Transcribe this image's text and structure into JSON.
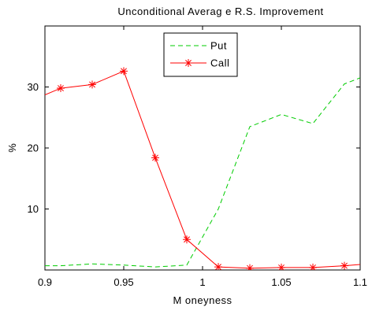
{
  "chart_data": {
    "type": "line",
    "title": "Unconditional Averag e R.S. Improvement",
    "xlabel": "M oneyness",
    "ylabel": "%",
    "xlim": [
      0.9,
      1.1
    ],
    "ylim": [
      0,
      40
    ],
    "xticks": [
      0.9,
      0.95,
      1,
      1.05,
      1.1
    ],
    "xtick_labels": [
      "0.9",
      "0.95",
      "1",
      "1.05",
      "1.1"
    ],
    "yticks": [
      10,
      20,
      30
    ],
    "ytick_labels": [
      "10",
      "20",
      "30"
    ],
    "grid": false,
    "legend_position": "top-center",
    "series": [
      {
        "name": "Put",
        "style": "dashed",
        "color": "#00cc00",
        "marker": "none",
        "x": [
          0.9,
          0.91,
          0.93,
          0.95,
          0.97,
          0.99,
          1.01,
          1.03,
          1.05,
          1.07,
          1.09,
          1.1
        ],
        "y": [
          0.7,
          0.7,
          1.0,
          0.8,
          0.5,
          0.8,
          10.0,
          23.5,
          25.5,
          24.0,
          30.5,
          31.5
        ]
      },
      {
        "name": "Call",
        "style": "solid",
        "color": "#ff0000",
        "marker": "asterisk",
        "x": [
          0.9,
          0.91,
          0.93,
          0.95,
          0.97,
          0.99,
          1.01,
          1.03,
          1.05,
          1.07,
          1.09,
          1.1
        ],
        "y": [
          28.7,
          29.8,
          30.4,
          32.6,
          18.4,
          5.0,
          0.5,
          0.3,
          0.4,
          0.4,
          0.7,
          0.9
        ],
        "marker_shown": [
          false,
          true,
          true,
          true,
          true,
          true,
          true,
          true,
          true,
          true,
          true,
          false
        ]
      }
    ]
  }
}
